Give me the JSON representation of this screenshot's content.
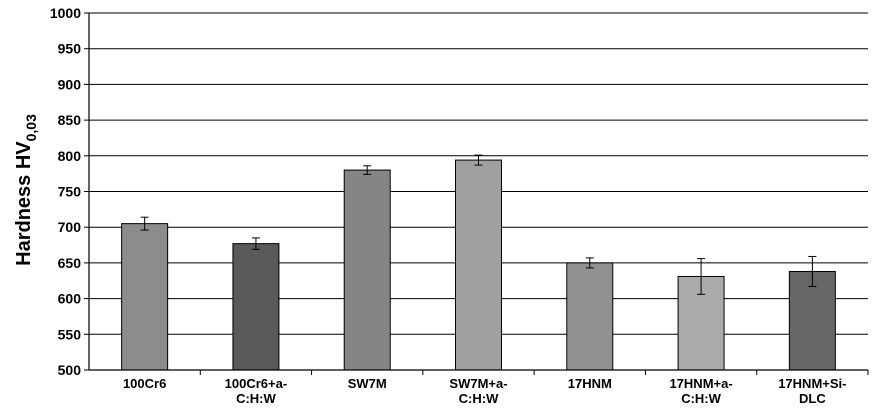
{
  "chart_data": {
    "type": "bar",
    "title": "",
    "xlabel": "",
    "ylabel": "Hardness HV",
    "ylabel_subscript": "0,03",
    "ylim": [
      500,
      1000
    ],
    "ytick_step": 50,
    "yticks": [
      "500",
      "550",
      "600",
      "650",
      "700",
      "750",
      "800",
      "850",
      "900",
      "950",
      "1000"
    ],
    "grid": true,
    "legend": "none",
    "categories": [
      [
        "100Cr6"
      ],
      [
        "100Cr6+a-",
        "C:H:W"
      ],
      [
        "SW7M"
      ],
      [
        "SW7M+a-",
        "C:H:W"
      ],
      [
        "17HNM"
      ],
      [
        "17HNM+a-",
        "C:H:W"
      ],
      [
        "17HNM+Si-",
        "DLC"
      ]
    ],
    "values": [
      705,
      677,
      780,
      794,
      650,
      631,
      638
    ],
    "errors": [
      9,
      8,
      6,
      7,
      7,
      25,
      21
    ],
    "bar_colors": [
      "#8c8c8c",
      "#595959",
      "#858585",
      "#a0a0a0",
      "#919191",
      "#ababab",
      "#666666"
    ]
  }
}
